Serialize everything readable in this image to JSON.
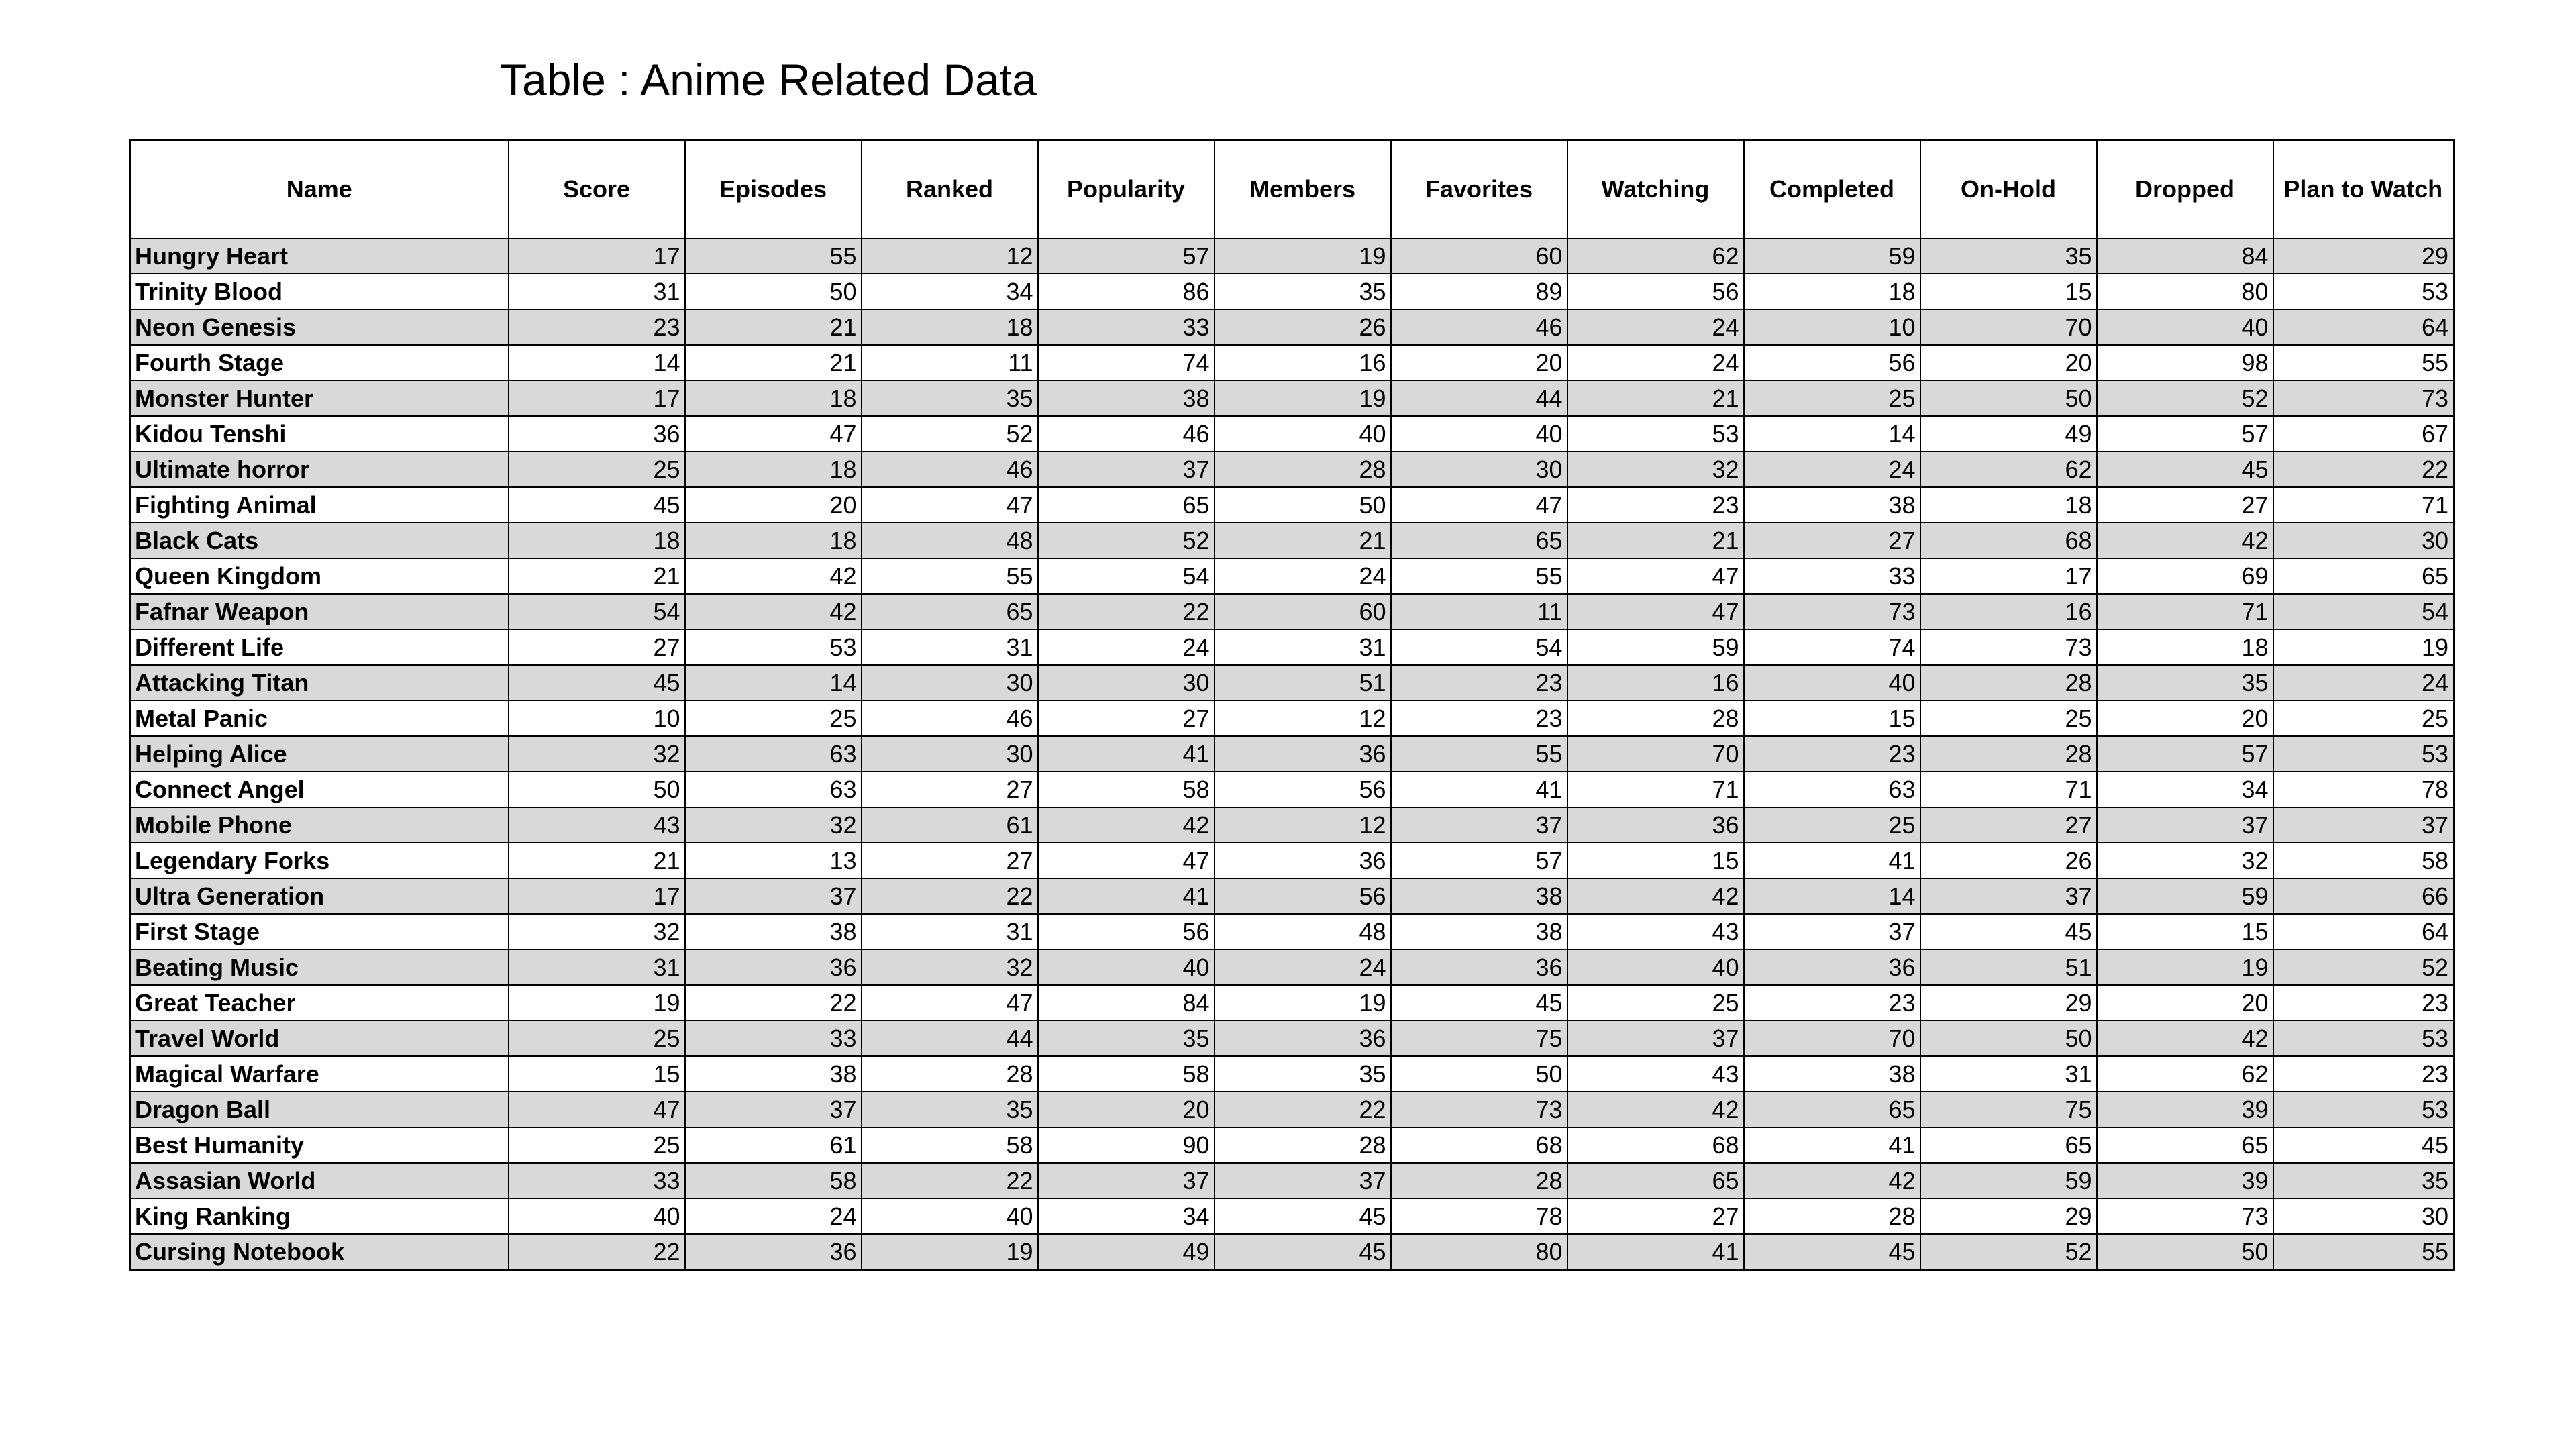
{
  "title": "Table : Anime Related Data",
  "table": {
    "columns": [
      "Name",
      "Score",
      "Episodes",
      "Ranked",
      "Popularity",
      "Members",
      "Favorites",
      "Watching",
      "Completed",
      "On-Hold",
      "Dropped",
      "Plan to Watch"
    ],
    "rows": [
      [
        "Hungry Heart",
        17,
        55,
        12,
        57,
        19,
        60,
        62,
        59,
        35,
        84,
        29
      ],
      [
        "Trinity Blood",
        31,
        50,
        34,
        86,
        35,
        89,
        56,
        18,
        15,
        80,
        53
      ],
      [
        "Neon Genesis",
        23,
        21,
        18,
        33,
        26,
        46,
        24,
        10,
        70,
        40,
        64
      ],
      [
        "Fourth Stage",
        14,
        21,
        11,
        74,
        16,
        20,
        24,
        56,
        20,
        98,
        55
      ],
      [
        "Monster Hunter",
        17,
        18,
        35,
        38,
        19,
        44,
        21,
        25,
        50,
        52,
        73
      ],
      [
        "Kidou Tenshi",
        36,
        47,
        52,
        46,
        40,
        40,
        53,
        14,
        49,
        57,
        67
      ],
      [
        "Ultimate horror",
        25,
        18,
        46,
        37,
        28,
        30,
        32,
        24,
        62,
        45,
        22
      ],
      [
        "Fighting Animal",
        45,
        20,
        47,
        65,
        50,
        47,
        23,
        38,
        18,
        27,
        71
      ],
      [
        "Black Cats",
        18,
        18,
        48,
        52,
        21,
        65,
        21,
        27,
        68,
        42,
        30
      ],
      [
        "Queen Kingdom",
        21,
        42,
        55,
        54,
        24,
        55,
        47,
        33,
        17,
        69,
        65
      ],
      [
        "Fafnar Weapon",
        54,
        42,
        65,
        22,
        60,
        11,
        47,
        73,
        16,
        71,
        54
      ],
      [
        "Different Life",
        27,
        53,
        31,
        24,
        31,
        54,
        59,
        74,
        73,
        18,
        19
      ],
      [
        "Attacking Titan",
        45,
        14,
        30,
        30,
        51,
        23,
        16,
        40,
        28,
        35,
        24
      ],
      [
        "Metal Panic",
        10,
        25,
        46,
        27,
        12,
        23,
        28,
        15,
        25,
        20,
        25
      ],
      [
        "Helping Alice",
        32,
        63,
        30,
        41,
        36,
        55,
        70,
        23,
        28,
        57,
        53
      ],
      [
        "Connect Angel",
        50,
        63,
        27,
        58,
        56,
        41,
        71,
        63,
        71,
        34,
        78
      ],
      [
        "Mobile Phone",
        43,
        32,
        61,
        42,
        12,
        37,
        36,
        25,
        27,
        37,
        37
      ],
      [
        "Legendary Forks",
        21,
        13,
        27,
        47,
        36,
        57,
        15,
        41,
        26,
        32,
        58
      ],
      [
        "Ultra Generation",
        17,
        37,
        22,
        41,
        56,
        38,
        42,
        14,
        37,
        59,
        66
      ],
      [
        "First Stage",
        32,
        38,
        31,
        56,
        48,
        38,
        43,
        37,
        45,
        15,
        64
      ],
      [
        "Beating Music",
        31,
        36,
        32,
        40,
        24,
        36,
        40,
        36,
        51,
        19,
        52
      ],
      [
        "Great Teacher",
        19,
        22,
        47,
        84,
        19,
        45,
        25,
        23,
        29,
        20,
        23
      ],
      [
        "Travel World",
        25,
        33,
        44,
        35,
        36,
        75,
        37,
        70,
        50,
        42,
        53
      ],
      [
        "Magical Warfare",
        15,
        38,
        28,
        58,
        35,
        50,
        43,
        38,
        31,
        62,
        23
      ],
      [
        "Dragon Ball",
        47,
        37,
        35,
        20,
        22,
        73,
        42,
        65,
        75,
        39,
        53
      ],
      [
        "Best Humanity",
        25,
        61,
        58,
        90,
        28,
        68,
        68,
        41,
        65,
        65,
        45
      ],
      [
        "Assasian World",
        33,
        58,
        22,
        37,
        37,
        28,
        65,
        42,
        59,
        39,
        35
      ],
      [
        "King Ranking",
        40,
        24,
        40,
        34,
        45,
        78,
        27,
        28,
        29,
        73,
        30
      ],
      [
        "Cursing Notebook",
        22,
        36,
        19,
        49,
        45,
        80,
        41,
        45,
        52,
        50,
        55
      ]
    ]
  }
}
